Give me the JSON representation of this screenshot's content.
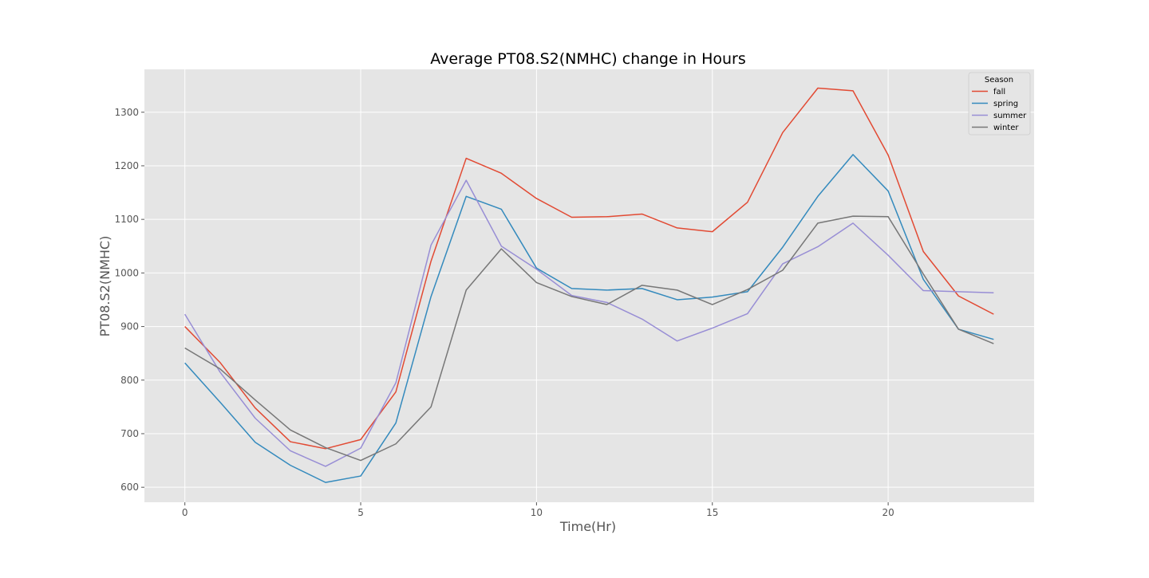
{
  "chart_data": {
    "type": "line",
    "title": "Average PT08.S2(NMHC) change in Hours",
    "xlabel": "Time(Hr)",
    "ylabel": "PT08.S2(NMHC)",
    "xlim": [
      -1.15,
      24.15
    ],
    "ylim": [
      572,
      1380
    ],
    "x_ticks": [
      0,
      5,
      10,
      15,
      20
    ],
    "y_ticks": [
      600,
      700,
      800,
      900,
      1000,
      1100,
      1200,
      1300
    ],
    "grid": true,
    "legend": {
      "title": "Season",
      "placement": "top-right"
    },
    "x": [
      0,
      1,
      2,
      3,
      4,
      5,
      6,
      7,
      8,
      9,
      10,
      11,
      12,
      13,
      14,
      15,
      16,
      17,
      18,
      19,
      20,
      21,
      22,
      23
    ],
    "series": [
      {
        "name": "fall",
        "color": "#e24a33",
        "values": [
          900,
          833,
          748,
          685,
          672,
          689,
          778,
          1022,
          1214,
          1186,
          1139,
          1104,
          1105,
          1110,
          1084,
          1077,
          1132,
          1262,
          1345,
          1340,
          1220,
          1040,
          957,
          923
        ]
      },
      {
        "name": "spring",
        "color": "#348abd",
        "values": [
          832,
          759,
          684,
          641,
          609,
          621,
          720,
          956,
          1143,
          1119,
          1009,
          971,
          968,
          971,
          950,
          955,
          965,
          1048,
          1143,
          1221,
          1153,
          988,
          895,
          876
        ]
      },
      {
        "name": "summer",
        "color": "#988ed5",
        "values": [
          923,
          815,
          729,
          668,
          639,
          673,
          795,
          1052,
          1173,
          1050,
          1007,
          958,
          945,
          914,
          873,
          897,
          924,
          1017,
          1049,
          1093,
          1033,
          967,
          965,
          963
        ]
      },
      {
        "name": "winter",
        "color": "#777777",
        "values": [
          860,
          821,
          763,
          707,
          674,
          650,
          681,
          750,
          968,
          1045,
          982,
          956,
          941,
          977,
          968,
          941,
          969,
          1005,
          1093,
          1106,
          1105,
          998,
          895,
          868
        ]
      }
    ],
    "colors": {
      "axes_background": "#e5e5e5",
      "grid": "#ffffff",
      "figure_background": "#ffffff"
    }
  }
}
